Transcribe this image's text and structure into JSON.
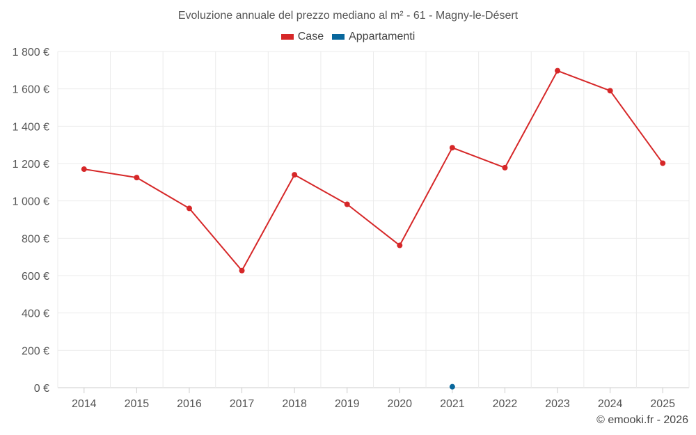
{
  "chart_data": {
    "type": "line",
    "title": "Evoluzione annuale del prezzo mediano al m² - 61 - Magny-le-Désert",
    "categories": [
      "2014",
      "2015",
      "2016",
      "2017",
      "2018",
      "2019",
      "2020",
      "2021",
      "2022",
      "2023",
      "2024",
      "2025"
    ],
    "series": [
      {
        "name": "Case",
        "color": "#d62728",
        "values": [
          1170,
          1125,
          960,
          627,
          1140,
          982,
          762,
          1285,
          1178,
          1697,
          1590,
          1202
        ]
      },
      {
        "name": "Appartamenti",
        "color": "#08679c",
        "values": [
          null,
          null,
          null,
          null,
          null,
          null,
          null,
          5,
          null,
          null,
          null,
          null
        ]
      }
    ],
    "y_ticks": [
      0,
      200,
      400,
      600,
      800,
      1000,
      1200,
      1400,
      1600,
      1800
    ],
    "y_tick_labels": [
      "0 €",
      "200 €",
      "400 €",
      "600 €",
      "800 €",
      "1 000 €",
      "1 200 €",
      "1 400 €",
      "1 600 €",
      "1 800 €"
    ],
    "ylim": [
      0,
      1800
    ],
    "xlabel": "",
    "ylabel": "",
    "grid": true,
    "legend_position": "top-center"
  },
  "credit": "© emooki.fr - 2026"
}
